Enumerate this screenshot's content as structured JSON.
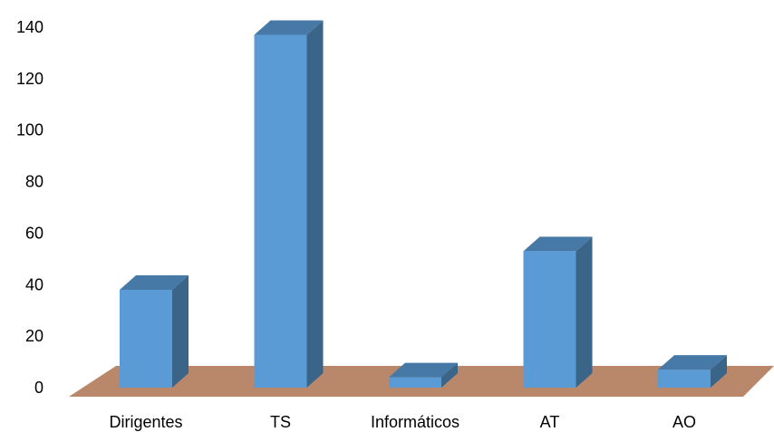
{
  "chart_data": {
    "type": "bar",
    "style": "3d-column",
    "categories": [
      "Dirigentes",
      "TS",
      "Informáticos",
      "AT",
      "AO"
    ],
    "values": [
      38,
      137,
      4,
      53,
      7
    ],
    "ylim": [
      0,
      140
    ],
    "yticks": [
      0,
      20,
      40,
      60,
      80,
      100,
      120,
      140
    ],
    "title": "",
    "xlabel": "",
    "ylabel": "",
    "grid": false,
    "legend": "none"
  },
  "colors": {
    "bar_front": "#5b9bd5",
    "bar_side": "#3a6488",
    "bar_top": "#4779a7",
    "floor": "#b9876a"
  }
}
